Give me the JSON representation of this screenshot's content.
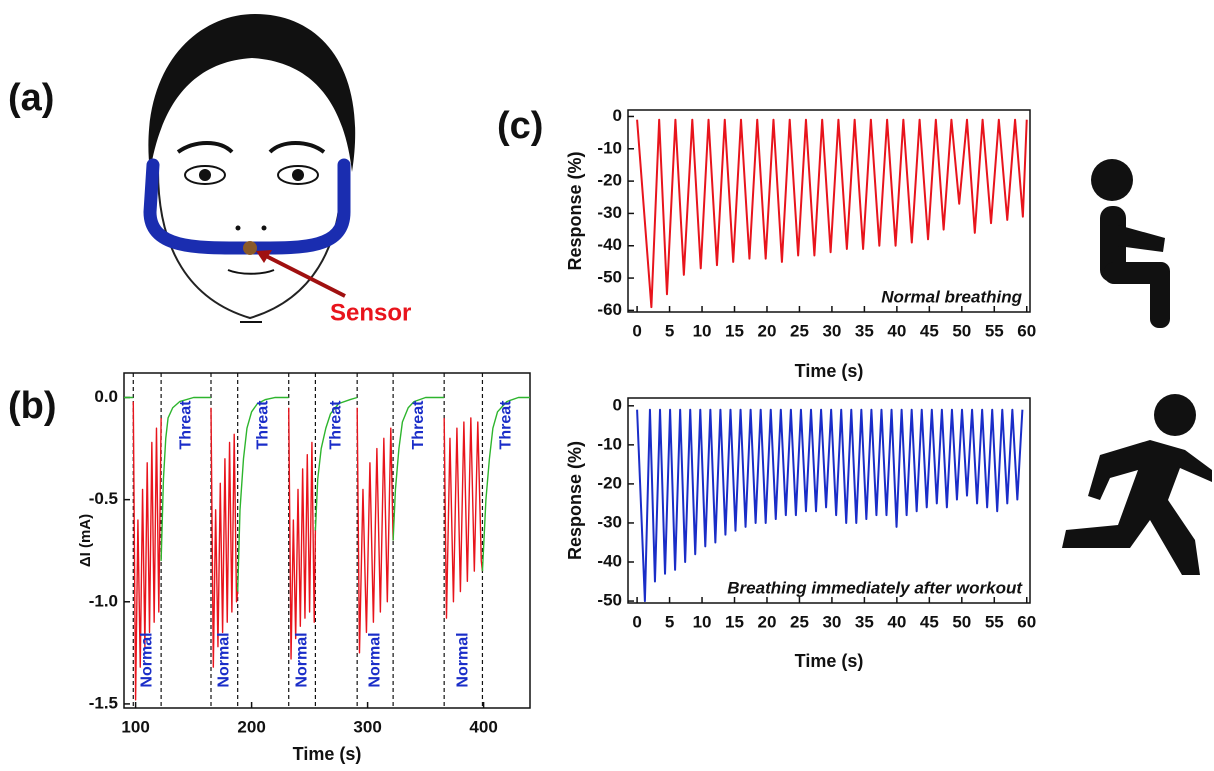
{
  "panel_labels": [
    "(a)",
    "(b)",
    "(c)"
  ],
  "sensor_label": "Sensor",
  "chart_data": [
    {
      "type": "line",
      "xlabel": "Time (s)",
      "ylabel": "ΔI (mA)",
      "xlim": [
        90,
        440
      ],
      "ylim": [
        -1.52,
        0.12
      ],
      "xticks": [
        100,
        200,
        300,
        400
      ],
      "yticks": [
        {
          "value": 0,
          "label": "0.0"
        },
        -0.5,
        {
          "value": -1,
          "label": "-1.0"
        },
        -1.5
      ],
      "vlines": [
        98,
        122,
        165,
        188,
        232,
        255,
        291,
        322,
        366,
        399
      ],
      "region_labels": [
        "Normal",
        "Threat",
        "Normal",
        "Threat",
        "Normal",
        "Threat",
        "Normal",
        "Threat",
        "Normal",
        "Threat"
      ],
      "series": [
        {
          "color": "#e8141c",
          "x": [
            98,
            100,
            102,
            104,
            106,
            108,
            110,
            112,
            114,
            116,
            118,
            120,
            122,
            null,
            165,
            167,
            169,
            171,
            173,
            175,
            177,
            179,
            181,
            183,
            185,
            187,
            188,
            null,
            232,
            234,
            236,
            238,
            240,
            242,
            244,
            246,
            248,
            250,
            252,
            254,
            255,
            null,
            291,
            293,
            296,
            299,
            302,
            305,
            308,
            311,
            314,
            317,
            320,
            322,
            null,
            366,
            368,
            371,
            374,
            377,
            380,
            383,
            386,
            389,
            392,
            395,
            398,
            399
          ],
          "values": [
            -0.02,
            -1.48,
            -0.6,
            -1.32,
            -0.45,
            -1.22,
            -0.32,
            -1.15,
            -0.22,
            -1.1,
            -0.15,
            -1.05,
            -0.1,
            null,
            -0.05,
            -1.32,
            -0.55,
            -1.22,
            -0.42,
            -1.15,
            -0.3,
            -1.1,
            -0.22,
            -1.05,
            -0.18,
            -1.0,
            -0.95,
            null,
            -0.05,
            -1.28,
            -0.6,
            -1.18,
            -0.45,
            -1.12,
            -0.35,
            -1.08,
            -0.28,
            -1.05,
            -0.22,
            -1.1,
            -0.65,
            null,
            -0.05,
            -1.25,
            -0.45,
            -1.15,
            -0.32,
            -1.1,
            -0.25,
            -1.05,
            -0.2,
            -1.0,
            -0.15,
            -0.7,
            null,
            -0.1,
            -1.08,
            -0.2,
            -1.0,
            -0.15,
            -0.95,
            -0.12,
            -0.9,
            -0.1,
            -0.85,
            -0.12,
            -0.8,
            -0.85
          ]
        },
        {
          "color": "#2db52d",
          "x": [
            90,
            98,
            null,
            122,
            124,
            126,
            128,
            132,
            138,
            150,
            165,
            null,
            188,
            190,
            193,
            196,
            200,
            205,
            212,
            220,
            232,
            null,
            255,
            257,
            260,
            264,
            268,
            275,
            285,
            291,
            null,
            322,
            324,
            327,
            330,
            335,
            340,
            350,
            366,
            null,
            399,
            402,
            405,
            408,
            412,
            420,
            430,
            440
          ],
          "values": [
            0,
            0,
            null,
            -0.8,
            -0.4,
            -0.2,
            -0.1,
            -0.05,
            -0.02,
            0,
            0,
            null,
            -0.95,
            -0.55,
            -0.3,
            -0.15,
            -0.07,
            -0.03,
            -0.01,
            0,
            0,
            null,
            -0.65,
            -0.4,
            -0.25,
            -0.15,
            -0.08,
            -0.03,
            -0.01,
            0,
            null,
            -0.7,
            -0.45,
            -0.25,
            -0.12,
            -0.05,
            -0.02,
            0,
            0,
            null,
            -0.85,
            -0.5,
            -0.3,
            -0.15,
            -0.07,
            -0.02,
            0,
            0
          ]
        }
      ]
    },
    {
      "type": "line",
      "xlabel": "Time (s)",
      "ylabel": "Response (%)",
      "annotation": "Normal breathing",
      "xlim": [
        -1.4,
        60.5
      ],
      "ylim": [
        -60.5,
        2
      ],
      "xticks": [
        0,
        5,
        10,
        15,
        20,
        25,
        30,
        35,
        40,
        45,
        50,
        55,
        60
      ],
      "yticks": [
        0,
        -10,
        -20,
        -30,
        -40,
        -50,
        -60
      ],
      "series": [
        {
          "color": "#e8141c",
          "x": [
            0,
            2.2,
            3.4,
            4.6,
            5.9,
            7.2,
            8.5,
            9.8,
            11.0,
            12.3,
            13.5,
            14.8,
            16.0,
            17.3,
            18.5,
            19.8,
            21.0,
            22.3,
            23.5,
            24.8,
            26.0,
            27.3,
            28.5,
            29.8,
            31.0,
            32.3,
            33.5,
            34.8,
            36.0,
            37.3,
            38.5,
            39.8,
            41.0,
            42.3,
            43.5,
            44.8,
            46.0,
            47.2,
            48.4,
            49.6,
            50.8,
            52.0,
            53.2,
            54.5,
            55.7,
            57.0,
            58.2,
            59.4,
            60
          ],
          "values": [
            -1,
            -59,
            -1,
            -55,
            -1,
            -49,
            -1,
            -47,
            -1,
            -46,
            -1,
            -45,
            -1,
            -44,
            -1,
            -44,
            -1,
            -45,
            -1,
            -43,
            -1,
            -43,
            -1,
            -42,
            -1,
            -41,
            -1,
            -41,
            -1,
            -40,
            -1,
            -40,
            -1,
            -39,
            -1,
            -38,
            -1,
            -35,
            -1,
            -27,
            -1,
            -36,
            -1,
            -33,
            -1,
            -32,
            -1,
            -31,
            -1
          ]
        }
      ]
    },
    {
      "type": "line",
      "xlabel": "Time (s)",
      "ylabel": "Response (%)",
      "annotation": "Breathing immediately after workout",
      "xlim": [
        -1.4,
        60.5
      ],
      "ylim": [
        -50.5,
        2
      ],
      "xticks": [
        0,
        5,
        10,
        15,
        20,
        25,
        30,
        35,
        40,
        45,
        50,
        55,
        60
      ],
      "yticks": [
        0,
        -10,
        -20,
        -30,
        -40,
        -50
      ],
      "series": [
        {
          "color": "#1a2dc8",
          "x": [
            0,
            1.2,
            1.98,
            2.75,
            3.53,
            4.3,
            5.08,
            5.85,
            6.63,
            7.4,
            8.18,
            8.95,
            9.73,
            10.5,
            11.28,
            12.05,
            12.83,
            13.6,
            14.38,
            15.15,
            15.93,
            16.7,
            17.48,
            18.25,
            19.03,
            19.8,
            20.58,
            21.35,
            22.13,
            22.9,
            23.68,
            24.45,
            25.23,
            26.0,
            26.78,
            27.55,
            28.33,
            29.1,
            29.88,
            30.65,
            31.43,
            32.2,
            32.98,
            33.75,
            34.53,
            35.3,
            36.08,
            36.85,
            37.63,
            38.4,
            39.18,
            39.95,
            40.73,
            41.5,
            42.28,
            43.05,
            43.83,
            44.6,
            45.38,
            46.15,
            46.93,
            47.7,
            48.48,
            49.25,
            50.03,
            50.8,
            51.58,
            52.35,
            53.13,
            53.9,
            54.68,
            55.45,
            56.23,
            57.0,
            57.78,
            58.55,
            59.33
          ],
          "values": [
            -1,
            -50,
            -1,
            -45,
            -1,
            -43,
            -1,
            -42,
            -1,
            -40,
            -1,
            -38,
            -1,
            -36,
            -1,
            -35,
            -1,
            -33,
            -1,
            -32,
            -1,
            -31,
            -1,
            -30,
            -1,
            -30,
            -1,
            -29,
            -1,
            -28,
            -1,
            -28,
            -1,
            -27,
            -1,
            -27,
            -1,
            -26,
            -1,
            -28,
            -1,
            -30,
            -1,
            -30,
            -1,
            -29,
            -1,
            -28,
            -1,
            -28,
            -1,
            -31,
            -1,
            -28,
            -1,
            -27,
            -1,
            -26,
            -1,
            -25,
            -1,
            -26,
            -1,
            -24,
            -1,
            -23,
            -1,
            -25,
            -1,
            -26,
            -1,
            -27,
            -1,
            -25,
            -1,
            -24,
            -1
          ]
        }
      ]
    }
  ]
}
